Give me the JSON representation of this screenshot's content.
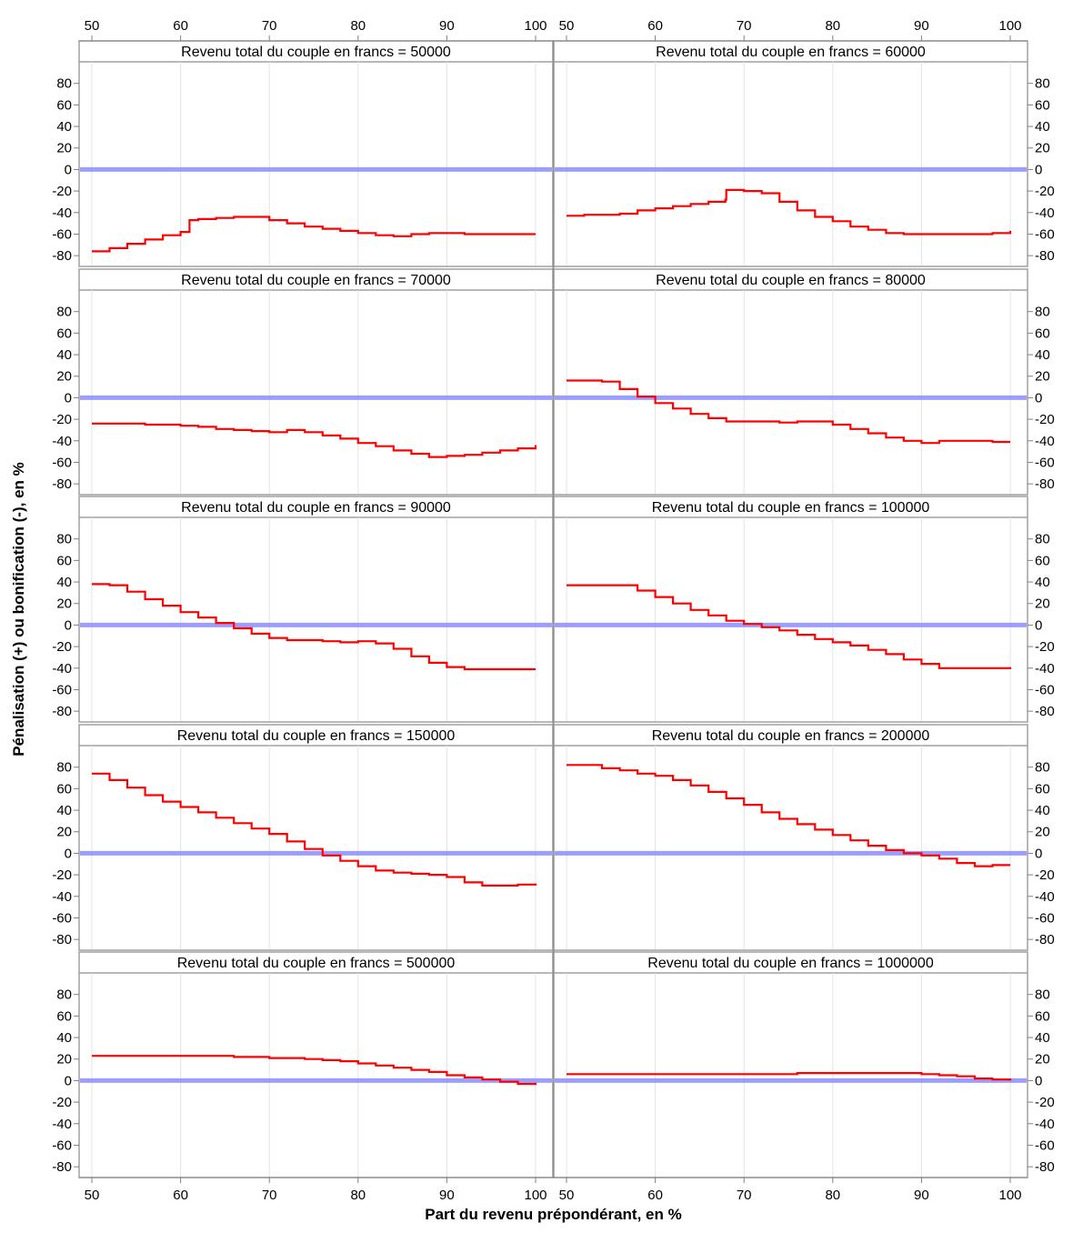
{
  "chart_data": {
    "type": "line",
    "layout": {
      "columns": 2,
      "rows": 5
    },
    "xlabel": "Part du revenu prépondérant, en %",
    "ylabel": "Pénalisation (+) ou bonification (-), en %",
    "xlim": [
      50,
      100
    ],
    "ylim": [
      -90,
      100
    ],
    "xticks": [
      50,
      60,
      70,
      80,
      90,
      100
    ],
    "yticks": [
      -80,
      -60,
      -40,
      -20,
      0,
      20,
      40,
      60,
      80
    ],
    "grid": "vertical",
    "reference_line": {
      "y": 0,
      "color": "#8c8cff"
    },
    "series_color": "#ff0000",
    "step_lines": true,
    "panels": [
      {
        "title": "Revenu total du couple en francs = 50000",
        "x": [
          50,
          52,
          54,
          56,
          58,
          60,
          61,
          62,
          64,
          66,
          68,
          70,
          72,
          74,
          76,
          78,
          80,
          82,
          84,
          86,
          88,
          90,
          92,
          94,
          96,
          98,
          100
        ],
        "y": [
          -76,
          -73,
          -69,
          -65,
          -61,
          -58,
          -47,
          -46,
          -45,
          -44,
          -44,
          -47,
          -50,
          -53,
          -55,
          -57,
          -59,
          -61,
          -62,
          -60,
          -59,
          -59,
          -60,
          -60,
          -60,
          -60,
          -60
        ]
      },
      {
        "title": "Revenu total du couple en francs = 60000",
        "x": [
          50,
          52,
          54,
          56,
          58,
          60,
          62,
          64,
          66,
          67.9,
          68,
          70,
          72,
          74,
          76,
          78,
          80,
          82,
          84,
          86,
          88,
          90,
          92,
          94,
          96,
          98,
          100
        ],
        "y": [
          -43,
          -42,
          -42,
          -41,
          -38,
          -36,
          -34,
          -32,
          -30,
          -28,
          -19,
          -20,
          -22,
          -30,
          -38,
          -44,
          -48,
          -53,
          -56,
          -59,
          -60,
          -60,
          -60,
          -60,
          -60,
          -59,
          -57
        ]
      },
      {
        "title": "Revenu total du couple en francs = 70000",
        "x": [
          50,
          52,
          54,
          56,
          58,
          60,
          62,
          64,
          66,
          68,
          70,
          72,
          74,
          76,
          78,
          80,
          82,
          84,
          86,
          88,
          90,
          92,
          94,
          96,
          98,
          100
        ],
        "y": [
          -24,
          -24,
          -24,
          -25,
          -25,
          -26,
          -27,
          -29,
          -30,
          -31,
          -32,
          -30,
          -32,
          -35,
          -38,
          -42,
          -45,
          -49,
          -52,
          -55,
          -54,
          -53,
          -51,
          -49,
          -47,
          -44
        ]
      },
      {
        "title": "Revenu total du couple en francs = 80000",
        "x": [
          50,
          52,
          54,
          56,
          58,
          60,
          62,
          64,
          66,
          68,
          70,
          72,
          74,
          76,
          78,
          80,
          82,
          84,
          86,
          88,
          90,
          92,
          94,
          96,
          98,
          100
        ],
        "y": [
          16,
          16,
          15,
          8,
          1,
          -5,
          -10,
          -15,
          -19,
          -22,
          -22,
          -22,
          -23,
          -22,
          -22,
          -25,
          -29,
          -33,
          -37,
          -40,
          -42,
          -40,
          -40,
          -40,
          -41,
          -41
        ]
      },
      {
        "title": "Revenu total du couple en francs = 90000",
        "x": [
          50,
          52,
          54,
          56,
          58,
          60,
          62,
          64,
          66,
          68,
          70,
          72,
          74,
          76,
          78,
          80,
          82,
          84,
          86,
          88,
          90,
          92,
          94,
          96,
          98,
          100
        ],
        "y": [
          38,
          37,
          31,
          24,
          18,
          12,
          7,
          2,
          -3,
          -8,
          -12,
          -14,
          -14,
          -15,
          -16,
          -15,
          -17,
          -22,
          -29,
          -35,
          -39,
          -41,
          -41,
          -41,
          -41,
          -41
        ]
      },
      {
        "title": "Revenu total du couple en francs = 100000",
        "x": [
          50,
          52,
          54,
          56,
          58,
          60,
          62,
          64,
          66,
          68,
          70,
          72,
          74,
          76,
          78,
          80,
          82,
          84,
          86,
          88,
          90,
          92,
          94,
          96,
          98,
          100
        ],
        "y": [
          37,
          37,
          37,
          37,
          32,
          26,
          20,
          14,
          9,
          4,
          1,
          -2,
          -5,
          -9,
          -13,
          -16,
          -19,
          -23,
          -27,
          -32,
          -36,
          -40,
          -40,
          -40,
          -40,
          -39
        ]
      },
      {
        "title": "Revenu total du couple en francs = 150000",
        "x": [
          50,
          52,
          54,
          56,
          58,
          60,
          62,
          64,
          66,
          68,
          70,
          72,
          74,
          76,
          78,
          80,
          82,
          84,
          86,
          88,
          90,
          92,
          94,
          96,
          98,
          100
        ],
        "y": [
          74,
          68,
          61,
          54,
          48,
          43,
          38,
          33,
          28,
          23,
          18,
          11,
          4,
          -2,
          -7,
          -12,
          -16,
          -18,
          -19,
          -20,
          -22,
          -27,
          -30,
          -30,
          -29,
          -28
        ]
      },
      {
        "title": "Revenu total du couple en francs = 200000",
        "x": [
          50,
          52,
          54,
          56,
          58,
          60,
          62,
          64,
          66,
          68,
          70,
          72,
          74,
          76,
          78,
          80,
          82,
          84,
          86,
          88,
          90,
          92,
          94,
          96,
          98,
          100
        ],
        "y": [
          82,
          82,
          79,
          77,
          74,
          72,
          68,
          63,
          57,
          51,
          45,
          38,
          32,
          27,
          22,
          17,
          12,
          7,
          3,
          0,
          -2,
          -5,
          -9,
          -12,
          -11,
          -11
        ]
      },
      {
        "title": "Revenu total du couple en francs = 500000",
        "x": [
          50,
          52,
          54,
          56,
          58,
          60,
          62,
          64,
          66,
          68,
          70,
          72,
          74,
          76,
          78,
          80,
          82,
          84,
          86,
          88,
          90,
          92,
          94,
          96,
          98,
          100
        ],
        "y": [
          23,
          23,
          23,
          23,
          23,
          23,
          23,
          23,
          22,
          22,
          21,
          21,
          20,
          19,
          18,
          16,
          14,
          12,
          10,
          8,
          5,
          3,
          1,
          -1,
          -3,
          -4
        ]
      },
      {
        "title": "Revenu total du couple en francs = 1000000",
        "x": [
          50,
          52,
          54,
          56,
          58,
          60,
          62,
          64,
          66,
          68,
          70,
          72,
          74,
          76,
          78,
          80,
          82,
          84,
          86,
          88,
          90,
          92,
          94,
          96,
          98,
          100
        ],
        "y": [
          6,
          6,
          6,
          6,
          6,
          6,
          6,
          6,
          6,
          6,
          6,
          6,
          6,
          7,
          7,
          7,
          7,
          7,
          7,
          7,
          6,
          5,
          4,
          2,
          1,
          0
        ]
      }
    ]
  }
}
